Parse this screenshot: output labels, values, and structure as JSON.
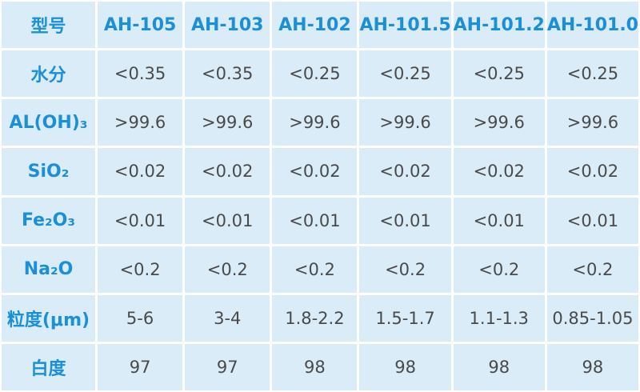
{
  "table": {
    "header": [
      "型号",
      "AH-105",
      "AH-103",
      "AH-102",
      "AH-101.5",
      "AH-101.2",
      "AH-101.0"
    ],
    "rows": [
      [
        "水分",
        "<0.35",
        "<0.35",
        "<0.25",
        "<0.25",
        "<0.25",
        "<0.25"
      ],
      [
        "AL(OH)₃",
        ">99.6",
        ">99.6",
        ">99.6",
        ">99.6",
        ">99.6",
        ">99.6"
      ],
      [
        "SiO₂",
        "<0.02",
        "<0.02",
        "<0.02",
        "<0.02",
        "<0.02",
        "<0.02"
      ],
      [
        "Fe₂O₃",
        "<0.01",
        "<0.01",
        "<0.01",
        "<0.01",
        "<0.01",
        "<0.01"
      ],
      [
        "Na₂O",
        "<0.2",
        "<0.2",
        "<0.2",
        "<0.2",
        "<0.2",
        "<0.2"
      ],
      [
        "粒度(μm)",
        "5-6",
        "3-4",
        "1.8-2.2",
        "1.5-1.7",
        "1.1-1.3",
        "0.85-1.05"
      ],
      [
        "白度",
        "97",
        "97",
        "98",
        "98",
        "98",
        "98"
      ]
    ]
  }
}
